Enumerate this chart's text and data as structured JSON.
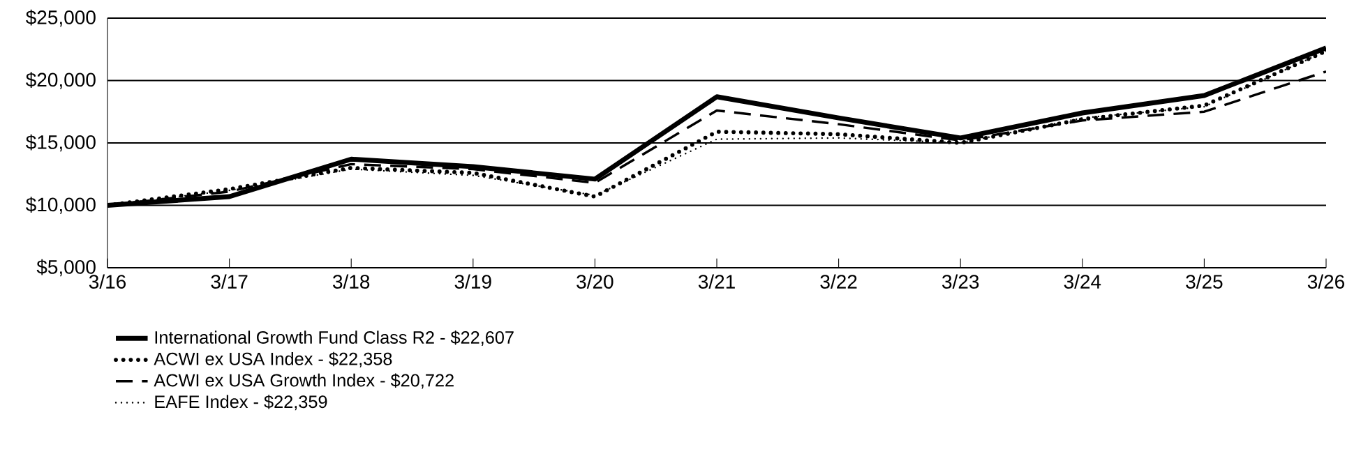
{
  "chart_data": {
    "type": "line",
    "categories": [
      "3/16",
      "3/17",
      "3/18",
      "3/19",
      "3/20",
      "3/21",
      "3/22",
      "3/23",
      "3/24",
      "3/25",
      "3/26"
    ],
    "series": [
      {
        "name": "International Growth Fund Class R2 - $22,607",
        "color": "#000000",
        "line_style": "solid",
        "values": [
          10000,
          10700,
          13700,
          13100,
          12100,
          18700,
          17000,
          15400,
          17400,
          18800,
          22607
        ]
      },
      {
        "name": "ACWI ex USA Index - $22,358",
        "color": "#000000",
        "line_style": "dotted",
        "values": [
          10000,
          11300,
          13000,
          12600,
          10700,
          15900,
          15700,
          15000,
          16900,
          18000,
          22358
        ]
      },
      {
        "name": "ACWI ex USA Growth Index - $20,722",
        "color": "#000000",
        "line_style": "dashed",
        "values": [
          10000,
          11100,
          13300,
          12900,
          11800,
          17600,
          16500,
          15200,
          16800,
          17500,
          20722
        ]
      },
      {
        "name": "EAFE Index - $22,359",
        "color": "#000000",
        "line_style": "dotted",
        "values": [
          10000,
          11200,
          12900,
          12400,
          10800,
          15300,
          15400,
          15000,
          17000,
          17900,
          22359
        ]
      }
    ],
    "ylim": [
      5000,
      25000
    ],
    "yticks": [
      {
        "value": 5000,
        "label": "$5,000"
      },
      {
        "value": 10000,
        "label": "$10,000"
      },
      {
        "value": 15000,
        "label": "$15,000"
      },
      {
        "value": 20000,
        "label": "$20,000"
      },
      {
        "value": 25000,
        "label": "$25,000"
      }
    ],
    "grid": "y",
    "legend": "bottom",
    "marker": "none"
  }
}
